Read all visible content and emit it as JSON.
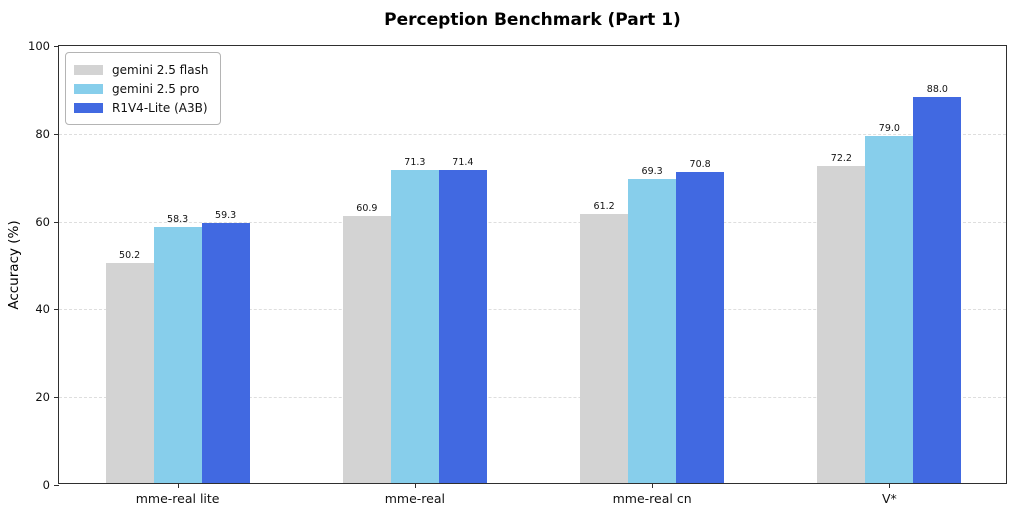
{
  "chart_data": {
    "type": "bar",
    "title": "Perception Benchmark (Part 1)",
    "xlabel": "",
    "ylabel": "Accuracy (%)",
    "categories": [
      "mme-real lite",
      "mme-real",
      "mme-real cn",
      "V*"
    ],
    "series": [
      {
        "name": "gemini 2.5 flash",
        "color": "#d3d3d3",
        "values": [
          50.2,
          60.9,
          61.2,
          72.2
        ]
      },
      {
        "name": "gemini 2.5 pro",
        "color": "#87ceeb",
        "values": [
          58.3,
          71.3,
          69.3,
          79.0
        ]
      },
      {
        "name": "R1V4-Lite (A3B)",
        "color": "#4169e1",
        "values": [
          59.3,
          71.4,
          70.8,
          88.0
        ]
      }
    ],
    "ylim": [
      0,
      100
    ],
    "yticks": [
      0,
      20,
      40,
      60,
      80,
      100
    ],
    "grid": true,
    "grid_axis": "y",
    "value_labels_decimals": 1,
    "legend_position": "upper left",
    "bar_labels_shown": true
  }
}
